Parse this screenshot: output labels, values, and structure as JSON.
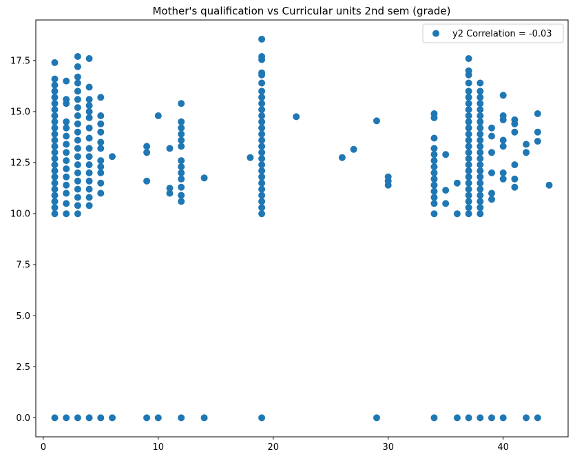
{
  "chart_data": {
    "type": "scatter",
    "title": "Mother's qualification vs Curricular units 2nd sem (grade)",
    "xlabel": "",
    "ylabel": "",
    "xlim": [
      -0.65,
      45.65
    ],
    "ylim": [
      -0.93,
      19.49
    ],
    "xticks": [
      0,
      10,
      20,
      30,
      40
    ],
    "xtick_labels": [
      "0",
      "10",
      "20",
      "30",
      "40"
    ],
    "yticks": [
      0,
      2.5,
      5,
      7.5,
      10,
      12.5,
      15,
      17.5
    ],
    "ytick_labels": [
      "0.0",
      "2.5",
      "5.0",
      "7.5",
      "10.0",
      "12.5",
      "15.0",
      "17.5"
    ],
    "grid": false,
    "legend": {
      "position": "top-right",
      "entries": [
        "y2 Correlation = -0.03"
      ]
    },
    "marker_color": "#1f77b4",
    "series": [
      {
        "name": "y2 Correlation = -0.03",
        "points": [
          [
            1,
            0
          ],
          [
            1,
            10
          ],
          [
            1,
            10.3
          ],
          [
            1,
            10.6
          ],
          [
            1,
            10.9
          ],
          [
            1,
            11.2
          ],
          [
            1,
            11.5
          ],
          [
            1,
            11.8
          ],
          [
            1,
            12.1
          ],
          [
            1,
            12.4
          ],
          [
            1,
            12.7
          ],
          [
            1,
            13
          ],
          [
            1,
            13.3
          ],
          [
            1,
            13.6
          ],
          [
            1,
            13.9
          ],
          [
            1,
            14.2
          ],
          [
            1,
            14.5
          ],
          [
            1,
            14.8
          ],
          [
            1,
            15.1
          ],
          [
            1,
            15.4
          ],
          [
            1,
            15.7
          ],
          [
            1,
            16
          ],
          [
            1,
            16.3
          ],
          [
            1,
            16.6
          ],
          [
            1,
            17.4
          ],
          [
            2,
            0
          ],
          [
            2,
            10
          ],
          [
            2,
            10.5
          ],
          [
            2,
            11
          ],
          [
            2,
            11.4
          ],
          [
            2,
            11.8
          ],
          [
            2,
            12.2
          ],
          [
            2,
            12.6
          ],
          [
            2,
            13
          ],
          [
            2,
            13.4
          ],
          [
            2,
            13.8
          ],
          [
            2,
            14.2
          ],
          [
            2,
            14.5
          ],
          [
            2,
            15.4
          ],
          [
            2,
            15.6
          ],
          [
            2,
            16.5
          ],
          [
            3,
            0
          ],
          [
            3,
            10
          ],
          [
            3,
            10.4
          ],
          [
            3,
            10.8
          ],
          [
            3,
            11.2
          ],
          [
            3,
            11.6
          ],
          [
            3,
            12
          ],
          [
            3,
            12.4
          ],
          [
            3,
            12.8
          ],
          [
            3,
            13.2
          ],
          [
            3,
            13.6
          ],
          [
            3,
            14
          ],
          [
            3,
            14.4
          ],
          [
            3,
            14.8
          ],
          [
            3,
            15.2
          ],
          [
            3,
            15.6
          ],
          [
            3,
            16
          ],
          [
            3,
            16.4
          ],
          [
            3,
            16.7
          ],
          [
            3,
            17.2
          ],
          [
            3,
            17.7
          ],
          [
            4,
            0
          ],
          [
            4,
            10.4
          ],
          [
            4,
            10.8
          ],
          [
            4,
            11.2
          ],
          [
            4,
            11.6
          ],
          [
            4,
            12
          ],
          [
            4,
            12.4
          ],
          [
            4,
            12.8
          ],
          [
            4,
            13.2
          ],
          [
            4,
            13.7
          ],
          [
            4,
            14.2
          ],
          [
            4,
            14.7
          ],
          [
            4,
            15
          ],
          [
            4,
            15.3
          ],
          [
            4,
            15.6
          ],
          [
            4,
            16.2
          ],
          [
            4,
            17.6
          ],
          [
            5,
            0
          ],
          [
            5,
            11
          ],
          [
            5,
            11.5
          ],
          [
            5,
            12
          ],
          [
            5,
            12.3
          ],
          [
            5,
            12.6
          ],
          [
            5,
            13.2
          ],
          [
            5,
            13.5
          ],
          [
            5,
            14
          ],
          [
            5,
            14.4
          ],
          [
            5,
            14.8
          ],
          [
            5,
            15.7
          ],
          [
            6,
            0
          ],
          [
            6,
            12.8
          ],
          [
            9,
            0
          ],
          [
            9,
            11.6
          ],
          [
            9,
            13
          ],
          [
            9,
            13.3
          ],
          [
            10,
            0
          ],
          [
            10,
            14.8
          ],
          [
            11,
            11
          ],
          [
            11,
            11.25
          ],
          [
            11,
            13.2
          ],
          [
            12,
            0
          ],
          [
            12,
            10.6
          ],
          [
            12,
            10.9
          ],
          [
            12,
            11.3
          ],
          [
            12,
            11.7
          ],
          [
            12,
            12
          ],
          [
            12,
            12.3
          ],
          [
            12,
            12.6
          ],
          [
            12,
            13.3
          ],
          [
            12,
            13.6
          ],
          [
            12,
            13.9
          ],
          [
            12,
            14.2
          ],
          [
            12,
            14.5
          ],
          [
            12,
            15.4
          ],
          [
            14,
            0
          ],
          [
            14,
            11.75
          ],
          [
            18,
            12.75
          ],
          [
            19,
            0
          ],
          [
            19,
            10
          ],
          [
            19,
            10.3
          ],
          [
            19,
            10.6
          ],
          [
            19,
            10.9
          ],
          [
            19,
            11.2
          ],
          [
            19,
            11.5
          ],
          [
            19,
            11.8
          ],
          [
            19,
            12.1
          ],
          [
            19,
            12.4
          ],
          [
            19,
            12.7
          ],
          [
            19,
            13
          ],
          [
            19,
            13.3
          ],
          [
            19,
            13.6
          ],
          [
            19,
            13.9
          ],
          [
            19,
            14.2
          ],
          [
            19,
            14.5
          ],
          [
            19,
            14.8
          ],
          [
            19,
            15.1
          ],
          [
            19,
            15.4
          ],
          [
            19,
            15.7
          ],
          [
            19,
            16
          ],
          [
            19,
            16.4
          ],
          [
            19,
            16.8
          ],
          [
            19,
            16.9
          ],
          [
            19,
            17.55
          ],
          [
            19,
            17.7
          ],
          [
            19,
            18.55
          ],
          [
            22,
            14.75
          ],
          [
            26,
            12.75
          ],
          [
            27,
            13.15
          ],
          [
            29,
            0
          ],
          [
            29,
            14.55
          ],
          [
            30,
            11.4
          ],
          [
            30,
            11.6
          ],
          [
            30,
            11.8
          ],
          [
            34,
            0
          ],
          [
            34,
            10
          ],
          [
            34,
            10.5
          ],
          [
            34,
            10.8
          ],
          [
            34,
            11.1
          ],
          [
            34,
            11.4
          ],
          [
            34,
            11.7
          ],
          [
            34,
            12
          ],
          [
            34,
            12.3
          ],
          [
            34,
            12.6
          ],
          [
            34,
            12.9
          ],
          [
            34,
            13.2
          ],
          [
            34,
            13.7
          ],
          [
            34,
            14.7
          ],
          [
            34,
            14.9
          ],
          [
            35,
            10.5
          ],
          [
            35,
            11.15
          ],
          [
            35,
            12.9
          ],
          [
            36,
            0
          ],
          [
            36,
            10
          ],
          [
            36,
            11.5
          ],
          [
            37,
            0
          ],
          [
            37,
            10
          ],
          [
            37,
            10.3
          ],
          [
            37,
            10.6
          ],
          [
            37,
            10.9
          ],
          [
            37,
            11.2
          ],
          [
            37,
            11.5
          ],
          [
            37,
            11.8
          ],
          [
            37,
            12.1
          ],
          [
            37,
            12.4
          ],
          [
            37,
            12.7
          ],
          [
            37,
            13
          ],
          [
            37,
            13.3
          ],
          [
            37,
            13.6
          ],
          [
            37,
            13.9
          ],
          [
            37,
            14.2
          ],
          [
            37,
            14.5
          ],
          [
            37,
            14.8
          ],
          [
            37,
            15.1
          ],
          [
            37,
            15.4
          ],
          [
            37,
            15.7
          ],
          [
            37,
            16
          ],
          [
            37,
            16.4
          ],
          [
            37,
            16.8
          ],
          [
            37,
            17
          ],
          [
            37,
            17.6
          ],
          [
            38,
            0
          ],
          [
            38,
            10
          ],
          [
            38,
            10.3
          ],
          [
            38,
            10.6
          ],
          [
            38,
            10.9
          ],
          [
            38,
            11.2
          ],
          [
            38,
            11.5
          ],
          [
            38,
            11.8
          ],
          [
            38,
            12.1
          ],
          [
            38,
            12.4
          ],
          [
            38,
            12.7
          ],
          [
            38,
            13
          ],
          [
            38,
            13.3
          ],
          [
            38,
            13.6
          ],
          [
            38,
            13.9
          ],
          [
            38,
            14.2
          ],
          [
            38,
            14.5
          ],
          [
            38,
            14.8
          ],
          [
            38,
            15.1
          ],
          [
            38,
            15.4
          ],
          [
            38,
            15.7
          ],
          [
            38,
            16
          ],
          [
            38,
            16.4
          ],
          [
            39,
            0
          ],
          [
            39,
            10.7
          ],
          [
            39,
            11
          ],
          [
            39,
            12
          ],
          [
            39,
            13
          ],
          [
            39,
            13.8
          ],
          [
            39,
            14.2
          ],
          [
            40,
            0
          ],
          [
            40,
            11.7
          ],
          [
            40,
            12
          ],
          [
            40,
            13.3
          ],
          [
            40,
            13.6
          ],
          [
            40,
            14.6
          ],
          [
            40,
            14.8
          ],
          [
            40,
            15.8
          ],
          [
            41,
            11.3
          ],
          [
            41,
            11.7
          ],
          [
            41,
            12.4
          ],
          [
            41,
            14
          ],
          [
            41,
            14.4
          ],
          [
            41,
            14.6
          ],
          [
            42,
            0
          ],
          [
            42,
            13
          ],
          [
            42,
            13.4
          ],
          [
            43,
            0
          ],
          [
            43,
            13.55
          ],
          [
            43,
            14
          ],
          [
            43,
            14.9
          ],
          [
            44,
            11.4
          ]
        ]
      }
    ]
  }
}
